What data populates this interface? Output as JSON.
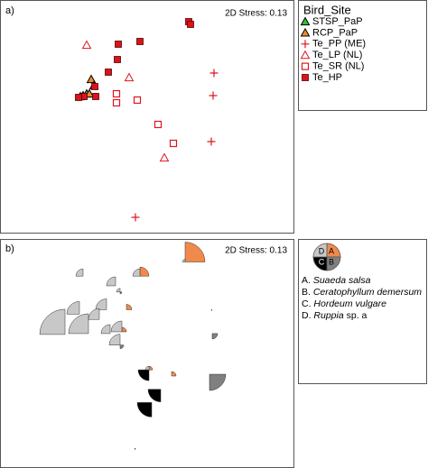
{
  "chart_data": [
    {
      "type": "scatter",
      "panel_label": "a)",
      "annotation": "2D Stress: 0.13",
      "legend_title": "Bird_Site",
      "legend": "right",
      "xlim": [
        0,
        325
      ],
      "ylim": [
        0,
        258
      ],
      "series": [
        {
          "name": "STSP_PaP",
          "color": "#2ec52e",
          "marker": "triangle-filled",
          "x": [
            89,
            96
          ],
          "values": [
            151,
            154
          ]
        },
        {
          "name": "RCP_PaP",
          "color": "#f08a30",
          "marker": "triangle-filled",
          "x": [
            101,
            104,
            92,
            99
          ],
          "values": [
            170,
            163,
            152,
            154
          ]
        },
        {
          "name": "Te_PP (ME)",
          "color": "#e0141e",
          "marker": "plus",
          "x": [
            237,
            236,
            234,
            150
          ],
          "values": [
            177,
            152,
            101,
            17
          ]
        },
        {
          "name": "Te_LP (NL)",
          "color": "#e0141e",
          "marker": "triangle-open",
          "x": [
            96,
            143,
            182
          ],
          "values": [
            208,
            172,
            83
          ]
        },
        {
          "name": "Te_SR (NL)",
          "color": "#e0141e",
          "marker": "square-open",
          "x": [
            129,
            129,
            152,
            175,
            192
          ],
          "values": [
            154,
            144,
            147,
            120,
            99
          ]
        },
        {
          "name": "Te_HP",
          "color": "#d8141c",
          "marker": "square-filled",
          "x": [
            209,
            211,
            131,
            155,
            130,
            120,
            105,
            106,
            93,
            87
          ],
          "values": [
            234,
            231,
            209,
            212,
            192,
            178,
            162,
            151,
            151,
            150
          ]
        }
      ]
    },
    {
      "type": "segments",
      "panel_label": "b)",
      "annotation": "2D Stress: 0.13",
      "legend": "right",
      "xlim": [
        0,
        325
      ],
      "ylim": [
        0,
        258
      ],
      "x": [
        205,
        155,
        92,
        128,
        133,
        88,
        118,
        140,
        72,
        98,
        110,
        122,
        135,
        133,
        235,
        234,
        165,
        178,
        168,
        190,
        232,
        150
      ],
      "y": [
        232,
        216,
        216,
        205,
        198,
        173,
        178,
        178,
        150,
        151,
        167,
        151,
        153,
        138,
        151,
        178,
        110,
        88,
        73,
        103,
        105,
        21
      ],
      "segments": [
        {
          "name": "A",
          "letter": "A.",
          "species": "Suaeda salsa",
          "color": "#f08a4b",
          "values": [
            22,
            10,
            0,
            0,
            0,
            0,
            0,
            6,
            0,
            0,
            0,
            0,
            5,
            0,
            0,
            0,
            4,
            0,
            0,
            5,
            0,
            0
          ]
        },
        {
          "name": "B",
          "letter": "B.",
          "species": "Ceratophyllum demersum",
          "color": "#808080",
          "values": [
            0,
            0,
            0,
            0,
            2,
            0,
            0,
            0,
            0,
            0,
            0,
            0,
            0,
            4,
            6,
            1,
            0,
            0,
            0,
            0,
            18,
            0
          ]
        },
        {
          "name": "C",
          "letter": "C.",
          "species": "Hordeum vulgare",
          "color": "#000000",
          "values": [
            0,
            0,
            0,
            0,
            0,
            0,
            0,
            0,
            0,
            0,
            0,
            0,
            0,
            0,
            0,
            0,
            12,
            14,
            16,
            0,
            0,
            1
          ]
        },
        {
          "name": "D",
          "letter": "D.",
          "species": "Ruppia",
          "qualifier": "sp. a",
          "color": "#c8c8c8",
          "values": [
            3,
            8,
            8,
            10,
            4,
            14,
            12,
            0,
            28,
            22,
            12,
            10,
            12,
            12,
            0,
            0,
            4,
            0,
            0,
            0,
            0,
            0
          ]
        }
      ]
    }
  ]
}
